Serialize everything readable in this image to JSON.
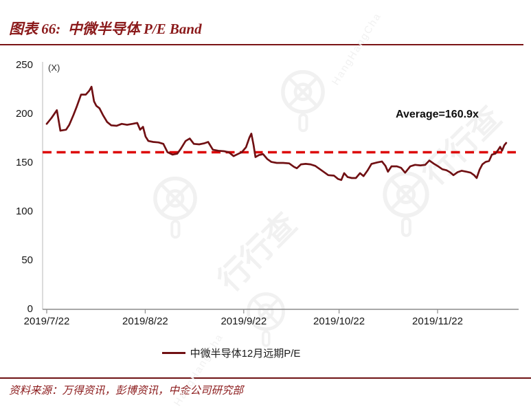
{
  "header": {
    "title": "图表 66:  中微半导体 P/E Band"
  },
  "chart_data": {
    "type": "line",
    "title": "中微半导体 P/E Band",
    "y_unit_label": "(X)",
    "ylim": [
      0,
      250
    ],
    "y_ticks": [
      0,
      50,
      100,
      150,
      200,
      250
    ],
    "grid": false,
    "legend_position": "bottom",
    "x_axis": {
      "tick_labels": [
        "2019/7/22",
        "2019/8/22",
        "2019/9/22",
        "2019/10/22",
        "2019/11/22"
      ],
      "tick_day_offsets": [
        0,
        31,
        62,
        92,
        123
      ],
      "unit": "days since 2019-07-22 (approx. calendar days)"
    },
    "average_line": {
      "value": 160.9,
      "label": "Average=160.9x",
      "style": "dashed",
      "color": "#dd0606"
    },
    "series": [
      {
        "name": "中微半导体12月远期P/E",
        "color": "#701013",
        "points": [
          [
            0,
            190
          ],
          [
            1.5,
            196
          ],
          [
            3.2,
            204
          ],
          [
            4.3,
            183
          ],
          [
            6.1,
            184
          ],
          [
            7.1,
            189
          ],
          [
            8.4,
            199
          ],
          [
            9.5,
            208
          ],
          [
            10.8,
            220
          ],
          [
            12.3,
            220
          ],
          [
            13.4,
            224
          ],
          [
            14.1,
            228
          ],
          [
            14.9,
            213
          ],
          [
            15.6,
            208.5
          ],
          [
            16.6,
            206
          ],
          [
            17.7,
            199
          ],
          [
            19,
            192
          ],
          [
            20.3,
            188.5
          ],
          [
            22,
            188
          ],
          [
            23.6,
            190
          ],
          [
            25.3,
            189
          ],
          [
            27,
            190
          ],
          [
            28.5,
            191
          ],
          [
            29.4,
            184
          ],
          [
            30.3,
            187
          ],
          [
            31.1,
            177
          ],
          [
            32,
            172.5
          ],
          [
            33.5,
            171.5
          ],
          [
            35.2,
            171
          ],
          [
            36.7,
            169.5
          ],
          [
            38,
            161
          ],
          [
            39.6,
            158.5
          ],
          [
            41.1,
            159.5
          ],
          [
            42.2,
            164.5
          ],
          [
            43.7,
            172.5
          ],
          [
            45,
            175
          ],
          [
            46.3,
            169.5
          ],
          [
            48,
            169
          ],
          [
            49.5,
            170
          ],
          [
            50.8,
            171.5
          ],
          [
            52.3,
            163.5
          ],
          [
            54,
            162.5
          ],
          [
            55.8,
            162
          ],
          [
            57.3,
            161
          ],
          [
            58.8,
            157
          ],
          [
            60.1,
            159
          ],
          [
            61.4,
            161
          ],
          [
            62.7,
            166
          ],
          [
            63.8,
            176
          ],
          [
            64.4,
            180
          ],
          [
            65.1,
            168
          ],
          [
            65.7,
            156
          ],
          [
            66.8,
            158
          ],
          [
            68.1,
            159
          ],
          [
            69.4,
            154
          ],
          [
            70.7,
            151
          ],
          [
            72.4,
            150
          ],
          [
            74.4,
            150
          ],
          [
            76.3,
            149.5
          ],
          [
            77.8,
            146
          ],
          [
            78.7,
            144.5
          ],
          [
            80,
            148.5
          ],
          [
            81.5,
            149
          ],
          [
            83,
            148.5
          ],
          [
            84.5,
            147
          ],
          [
            86,
            143.5
          ],
          [
            87.1,
            141
          ],
          [
            88.6,
            137.5
          ],
          [
            90.4,
            137
          ],
          [
            91.7,
            133.5
          ],
          [
            92.7,
            132.5
          ],
          [
            93.6,
            139.5
          ],
          [
            94.7,
            135.5
          ],
          [
            96,
            134.5
          ],
          [
            97.3,
            134.5
          ],
          [
            98.6,
            139.5
          ],
          [
            99.7,
            136.5
          ],
          [
            100.9,
            142
          ],
          [
            102.2,
            149
          ],
          [
            104,
            150.5
          ],
          [
            105.5,
            151.5
          ],
          [
            106.6,
            147
          ],
          [
            107.4,
            141
          ],
          [
            108.5,
            146.5
          ],
          [
            110.2,
            146.5
          ],
          [
            111.5,
            145
          ],
          [
            112.8,
            140
          ],
          [
            114.4,
            146.5
          ],
          [
            115.9,
            148
          ],
          [
            117.6,
            147.5
          ],
          [
            119.1,
            148
          ],
          [
            120.4,
            152.5
          ],
          [
            121.9,
            149
          ],
          [
            123.2,
            146.5
          ],
          [
            124.5,
            143.5
          ],
          [
            125.8,
            142.5
          ],
          [
            126.9,
            140.5
          ],
          [
            128,
            137.5
          ],
          [
            129.3,
            140.5
          ],
          [
            130.6,
            142
          ],
          [
            132.1,
            141
          ],
          [
            133.4,
            140
          ],
          [
            134.5,
            137.5
          ],
          [
            135.3,
            134.5
          ],
          [
            136.2,
            143
          ],
          [
            137.1,
            148.5
          ],
          [
            138.1,
            151
          ],
          [
            139.2,
            152
          ],
          [
            140.1,
            158.5
          ],
          [
            141.2,
            159.5
          ],
          [
            142,
            163
          ],
          [
            142.7,
            166.5
          ],
          [
            143.3,
            162.5
          ],
          [
            144,
            168
          ],
          [
            144.6,
            170.5
          ]
        ]
      }
    ]
  },
  "legend": {
    "items": [
      {
        "label": "中微半导体12月远期P/E"
      }
    ]
  },
  "annotations": {
    "average_label": "Average=160.9x"
  },
  "footer": {
    "source": "资料来源：万得资讯，彭博资讯，中金公司研究部"
  },
  "watermark": {
    "cn": "行行查",
    "en": "HangHangCha"
  },
  "colors": {
    "title": "#8b1a1b",
    "rule": "#7a1315",
    "series": "#701013",
    "average": "#dd0606",
    "axis_line": "#8c8c8c",
    "y_axis_line": "#c4c4c4"
  }
}
